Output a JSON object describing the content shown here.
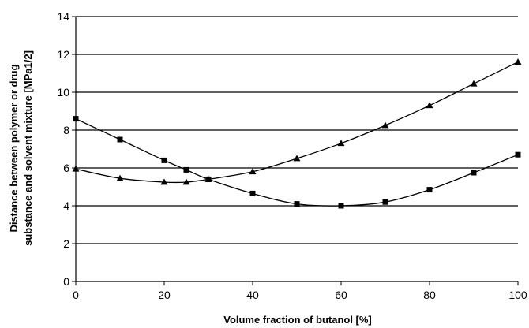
{
  "chart_data": {
    "type": "line",
    "xlabel": "Volume fraction of butanol [%]",
    "ylabel_line1": "Distance between polymer or drug",
    "ylabel_line2": "substance and solvent mixture [MPa1/2]",
    "xlim": [
      0,
      100
    ],
    "ylim": [
      0,
      14
    ],
    "xticks": [
      "0",
      "20",
      "40",
      "60",
      "80",
      "100"
    ],
    "yticks": [
      "0",
      "2",
      "4",
      "6",
      "8",
      "10",
      "12",
      "14"
    ],
    "grid": "horizontal",
    "legend": "none",
    "series": [
      {
        "marker": "square",
        "color": "#000000",
        "x": [
          0,
          10,
          20,
          25,
          30,
          40,
          50,
          60,
          70,
          80,
          90,
          100
        ],
        "y": [
          8.6,
          7.5,
          6.4,
          5.9,
          5.4,
          4.65,
          4.1,
          4.0,
          4.2,
          4.85,
          5.75,
          6.7
        ]
      },
      {
        "marker": "triangle",
        "color": "#000000",
        "x": [
          0,
          10,
          20,
          25,
          30,
          40,
          50,
          60,
          70,
          80,
          90,
          100
        ],
        "y": [
          5.95,
          5.45,
          5.25,
          5.25,
          5.4,
          5.8,
          6.5,
          7.3,
          8.25,
          9.3,
          10.45,
          11.6
        ]
      }
    ]
  }
}
